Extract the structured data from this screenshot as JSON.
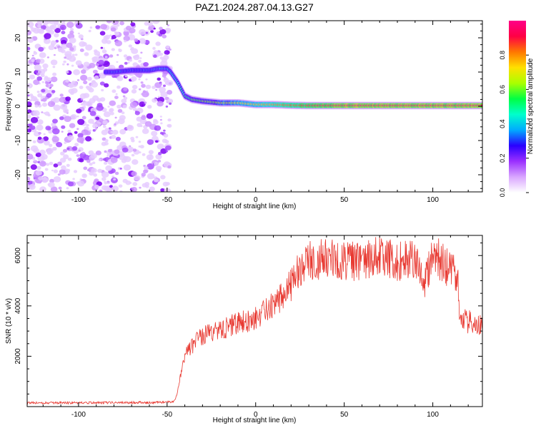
{
  "title": "PAZ1.2024.287.04.13.G27",
  "colors": {
    "snr_line": "#e83a32",
    "speckle": "#a64dff",
    "background": "#ffffff"
  },
  "chart_data": [
    {
      "type": "heatmap",
      "title": "PAZ1.2024.287.04.13.G27",
      "xlabel": "Height of straight line (km)",
      "ylabel": "Frequency (Hz)",
      "xlim": [
        -129,
        128
      ],
      "ylim": [
        -25,
        25
      ],
      "x_ticks": [
        -100,
        -50,
        0,
        50,
        100
      ],
      "y_ticks": [
        -20,
        -10,
        0,
        10,
        20
      ],
      "x_tick_labels": [
        "-100",
        "-50",
        "0",
        "50",
        "100"
      ],
      "y_tick_labels": [
        "-20",
        "-10",
        "0",
        "10",
        "20"
      ],
      "colorbar": {
        "label": "Normalized spectral amplitude",
        "range": [
          0,
          1
        ],
        "ticks": [
          0.0,
          0.2,
          0.4,
          0.6,
          0.8
        ],
        "tick_labels": [
          "0.0",
          "0.2",
          "0.4",
          "0.6",
          "0.8"
        ],
        "colormap": [
          "#ffffff",
          "#d9a6ff",
          "#9b30ff",
          "#2a00ff",
          "#00aaff",
          "#00ffcc",
          "#00ff44",
          "#aaff00",
          "#ffe000",
          "#ff7700",
          "#ff0044",
          "#ff0088"
        ]
      },
      "noise_region_x": [
        -129,
        -48
      ],
      "ridge": {
        "x": [
          -129,
          -85,
          -80,
          -70,
          -60,
          -55,
          -50,
          -48,
          -44,
          -40,
          -36,
          -30,
          -20,
          -10,
          0,
          10,
          20,
          30,
          50,
          70,
          100,
          128
        ],
        "frequency": [
          10,
          10,
          10,
          10.5,
          10.5,
          11,
          11,
          10,
          7,
          3,
          2,
          1.5,
          1,
          1,
          0.5,
          0.5,
          0.3,
          0.2,
          0.2,
          0.2,
          0.2,
          0.2
        ],
        "amplitude": [
          0,
          0.25,
          0.3,
          0.3,
          0.3,
          0.35,
          0.35,
          0.4,
          0.45,
          0.5,
          0.55,
          0.6,
          0.65,
          0.7,
          0.75,
          0.8,
          0.85,
          0.9,
          0.95,
          0.95,
          0.95,
          0.95
        ]
      }
    },
    {
      "type": "line",
      "xlabel": "Height of straight line (km)",
      "ylabel": "SNR (10 * v/v)",
      "xlim": [
        -129,
        128
      ],
      "ylim": [
        0,
        6800
      ],
      "x_ticks": [
        -100,
        -50,
        0,
        50,
        100
      ],
      "y_ticks": [
        2000,
        4000,
        6000
      ],
      "x_tick_labels": [
        "-100",
        "-50",
        "0",
        "50",
        "100"
      ],
      "y_tick_labels": [
        "2000",
        "4000",
        "6000"
      ],
      "series": [
        {
          "x": [
            -129,
            -100,
            -60,
            -50,
            -46,
            -44,
            -42,
            -40,
            -35,
            -30,
            -20,
            -10,
            0,
            10,
            20,
            25,
            30,
            40,
            50,
            60,
            70,
            80,
            90,
            95,
            100,
            110,
            114,
            115,
            118,
            125,
            128
          ],
          "y": [
            150,
            150,
            160,
            180,
            200,
            600,
            1400,
            2000,
            2500,
            2800,
            3100,
            3300,
            3500,
            4000,
            4800,
            5500,
            5800,
            5900,
            5800,
            5700,
            6000,
            5800,
            5800,
            4800,
            6100,
            5400,
            5300,
            3500,
            3400,
            3300,
            3300
          ]
        }
      ]
    }
  ]
}
